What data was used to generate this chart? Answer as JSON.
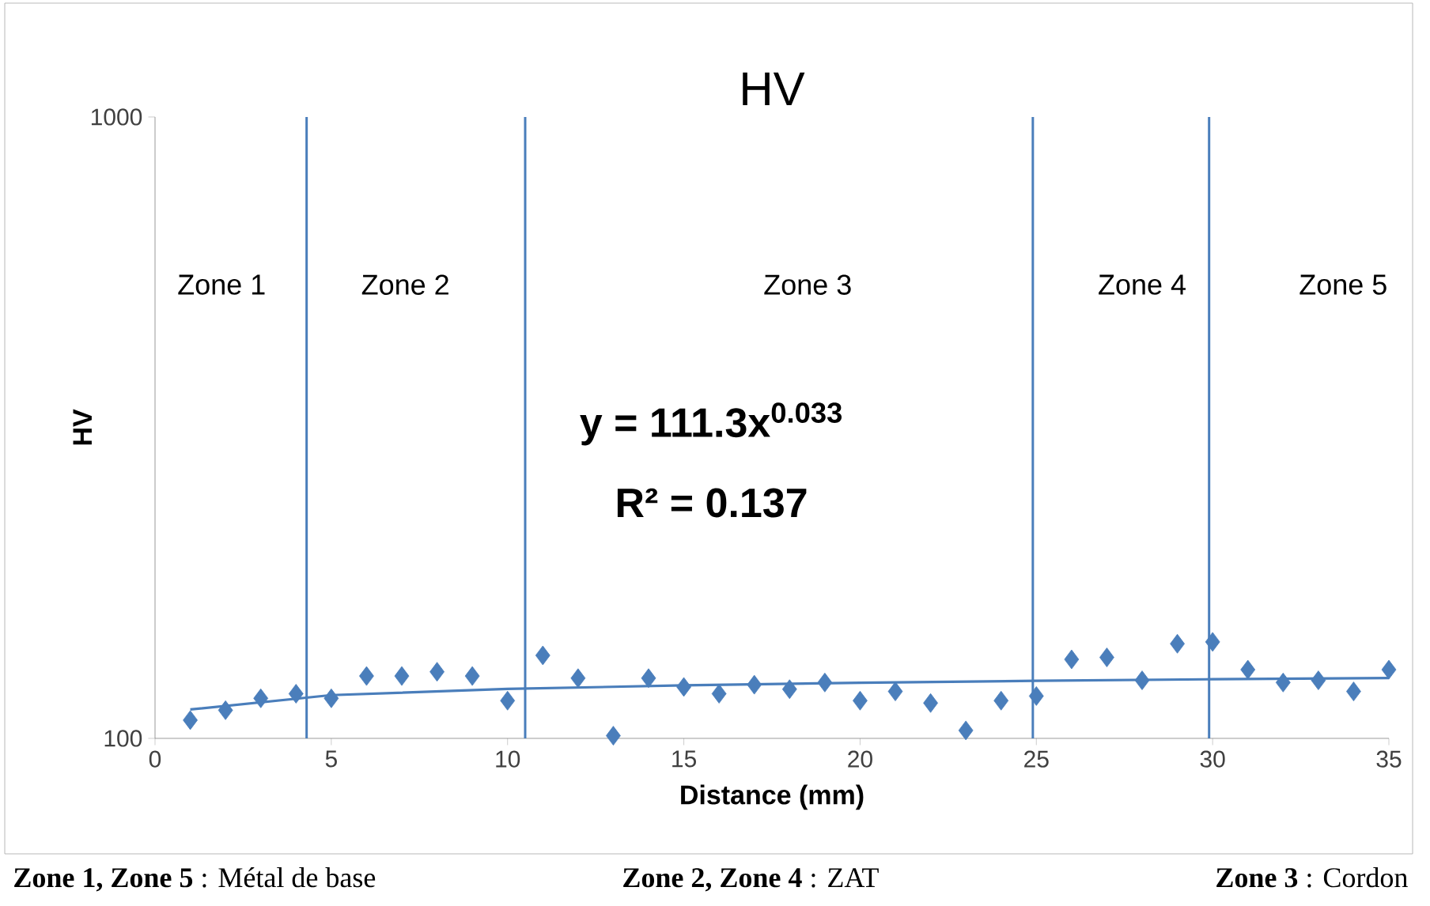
{
  "chart_data": {
    "type": "scatter",
    "title": "HV",
    "xlabel": "Distance (mm)",
    "ylabel": "HV",
    "log": "y",
    "xlim": [
      0,
      35
    ],
    "xticks": [
      0,
      5,
      10,
      15,
      20,
      25,
      30,
      35
    ],
    "ylim": [
      100,
      1000
    ],
    "yticks": [
      100,
      1000
    ],
    "marker": "diamond",
    "series": [
      {
        "type": "scatter",
        "color": "#4a7ebb",
        "x": [
          1,
          2,
          3,
          4,
          5,
          6,
          7,
          8,
          9,
          10,
          11,
          12,
          13,
          14,
          15,
          16,
          17,
          18,
          19,
          20,
          21,
          22,
          23,
          24,
          25,
          26,
          27,
          28,
          29,
          30,
          31,
          32,
          33,
          34,
          35
        ],
        "values": [
          107,
          111,
          116,
          118,
          116,
          126,
          126,
          128,
          126,
          115,
          136,
          125,
          101,
          125,
          121,
          118,
          122,
          120,
          123,
          115,
          119,
          114,
          103,
          115,
          117,
          134,
          135,
          124,
          142,
          143,
          129,
          123,
          124,
          119,
          129
        ]
      },
      {
        "type": "line",
        "color": "#4a7ebb",
        "marker": "none",
        "x": [
          1,
          5,
          10,
          15,
          20,
          25,
          30,
          35
        ],
        "values": [
          111.3,
          117.4,
          120.1,
          121.7,
          122.9,
          123.8,
          124.5,
          125.1
        ]
      }
    ],
    "ref_lines": [
      {
        "axis": "x",
        "value": 4.3,
        "color": "#4a7ebb"
      },
      {
        "axis": "x",
        "value": 10.5,
        "color": "#4a7ebb"
      },
      {
        "axis": "x",
        "value": 24.9,
        "color": "#4a7ebb"
      },
      {
        "axis": "x",
        "value": 29.9,
        "color": "#4a7ebb"
      }
    ],
    "annotations": [
      "Zone 1",
      "Zone 2",
      "Zone 3",
      "Zone 4",
      "Zone 5",
      "y = 111.3x$^{0.033}$",
      "R² = 0.137",
      "**Zone 1, Zone 5** : Métal de base",
      "**Zone 2, Zone 4** : ZAT",
      "**Zone 3** : Cordon"
    ]
  }
}
